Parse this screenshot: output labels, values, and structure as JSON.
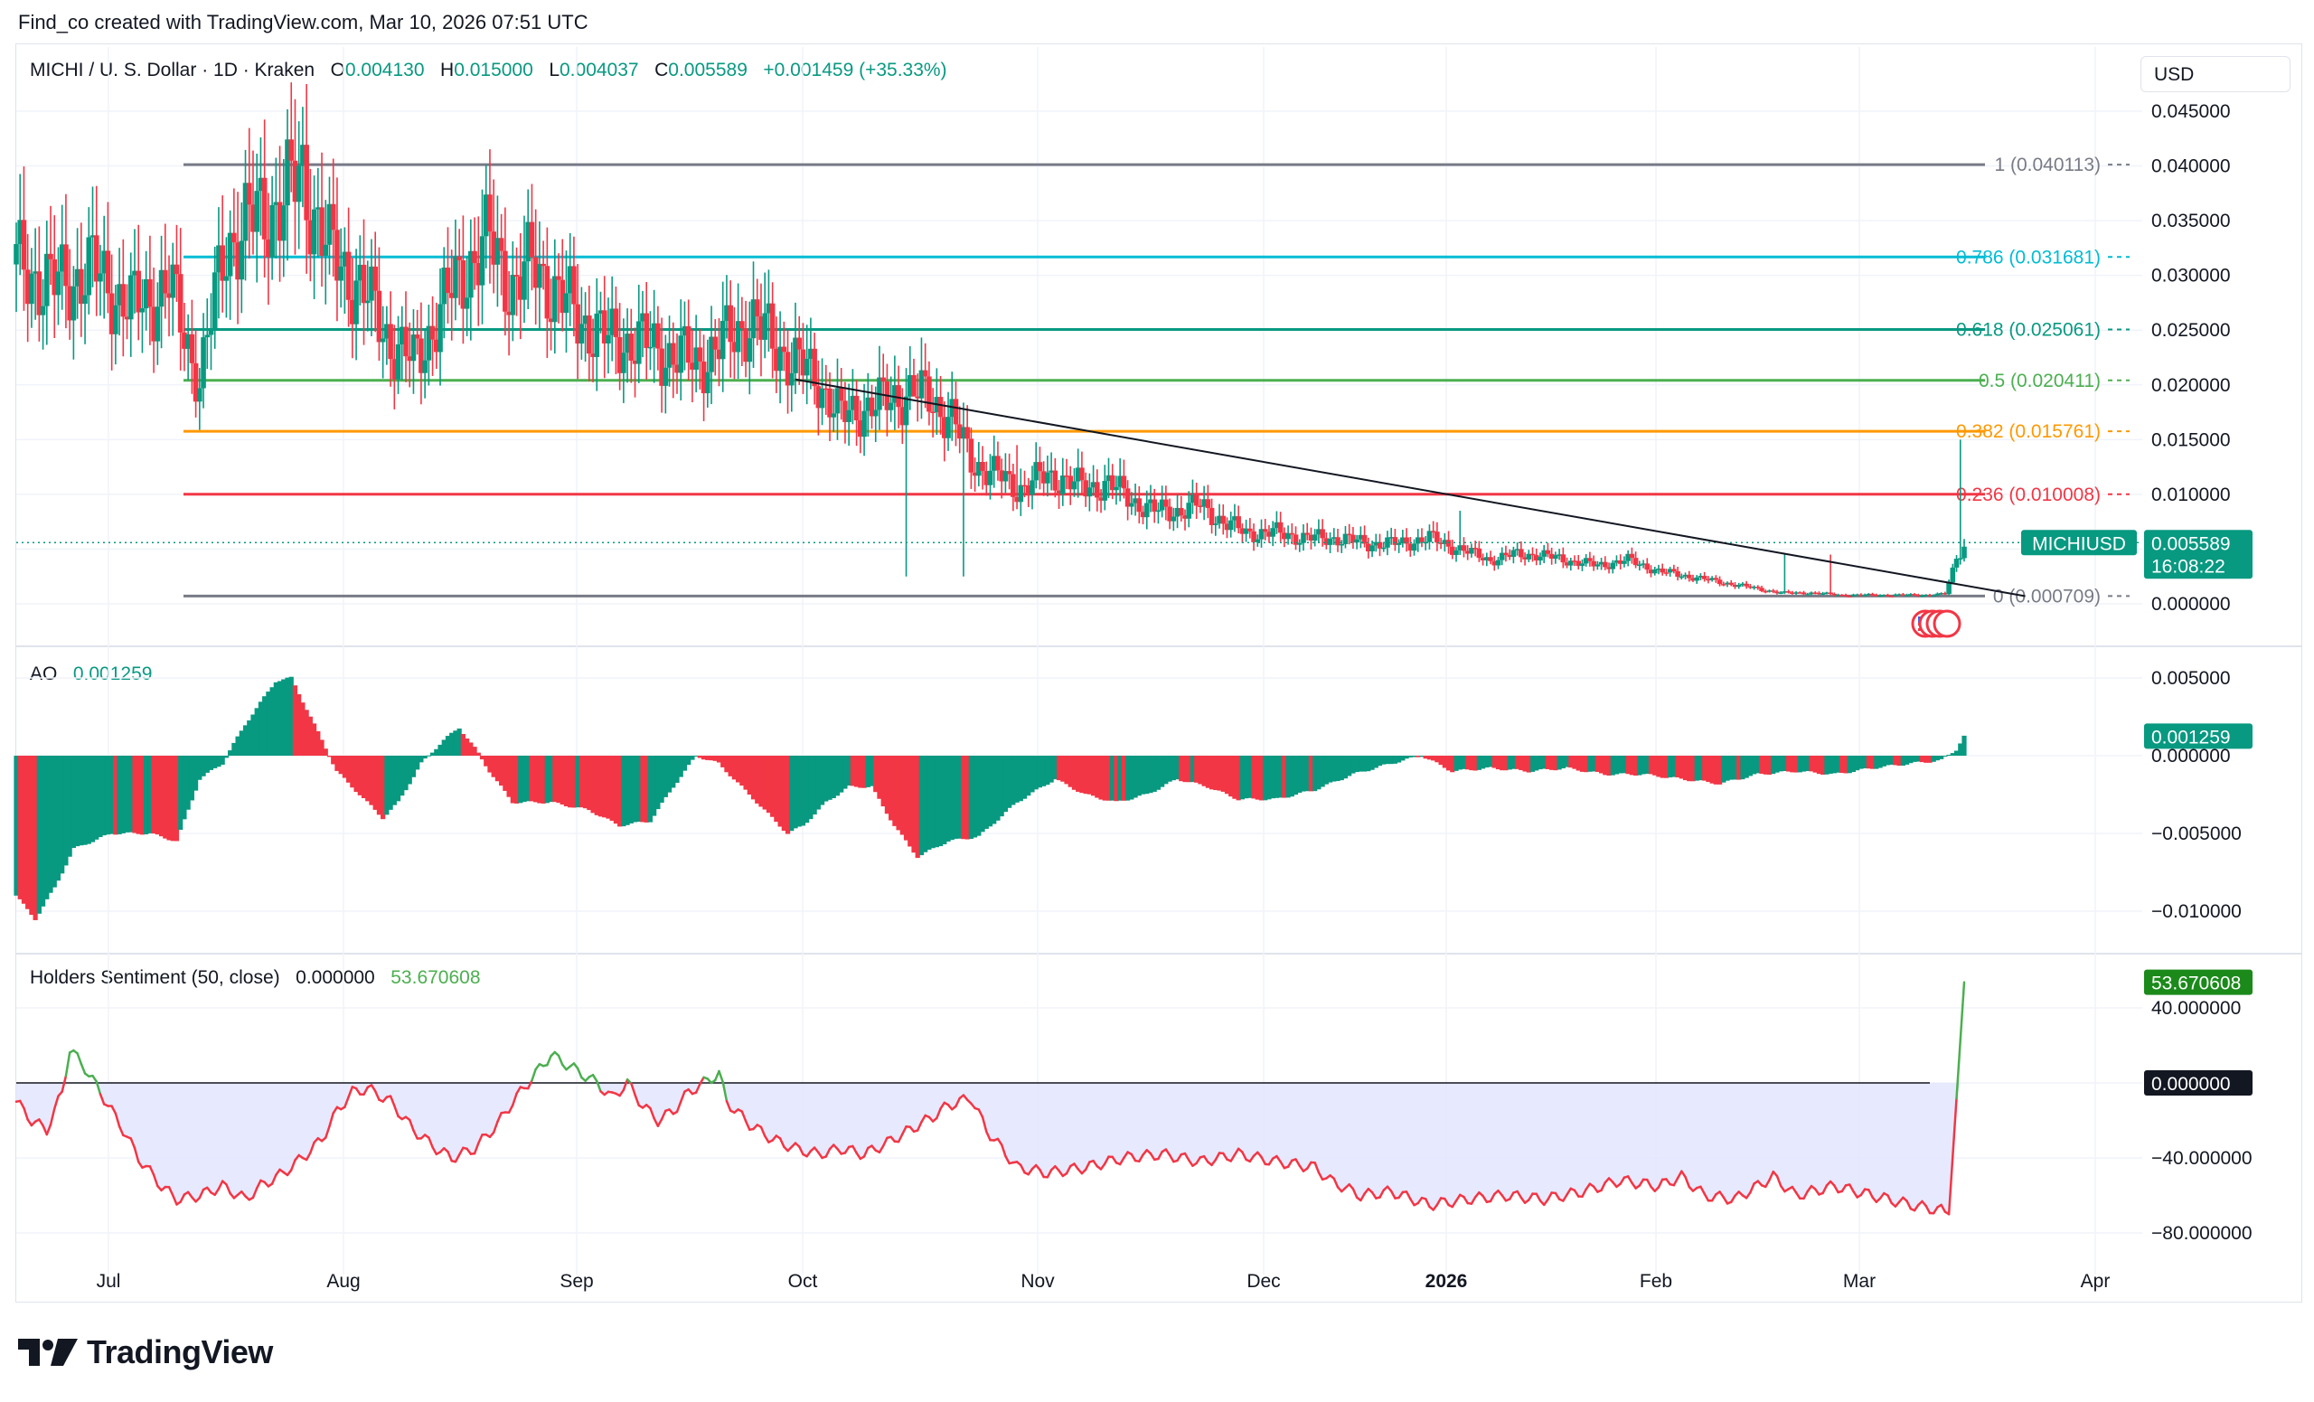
{
  "credit": "Find_co created with TradingView.com, Mar 10, 2026 07:51 UTC",
  "brand": "TradingView",
  "currency": "USD",
  "legend": {
    "symbol": "MICHI / U. S. Dollar · 1D · Kraken",
    "o_label": "O",
    "o": "0.004130",
    "h_label": "H",
    "h": "0.015000",
    "l_label": "L",
    "l": "0.004037",
    "c_label": "C",
    "c": "0.005589",
    "change": "+0.001459 (+35.33%)"
  },
  "ao_legend": {
    "name": "AO",
    "value": "0.001259"
  },
  "hs_legend": {
    "name": "Holders Sentiment (50, close)",
    "v1": "0.000000",
    "v2": "53.670608"
  },
  "colors": {
    "up": "#089981",
    "down": "#f23645",
    "hs_line": "#f23645",
    "hs_fill": "#e1e3ff",
    "trend": "#131722"
  },
  "chart_data": [
    {
      "type": "candlestick",
      "title": "MICHI / U. S. Dollar · 1D · Kraken",
      "ylim": [
        -0.002,
        0.045
      ],
      "y_ticks": [
        "0.045000",
        "0.040000",
        "0.035000",
        "0.030000",
        "0.025000",
        "0.020000",
        "0.015000",
        "0.010000",
        "0.005000",
        "0.000000"
      ],
      "y_tick_values": [
        0.045,
        0.04,
        0.035,
        0.03,
        0.025,
        0.02,
        0.015,
        0.01,
        0.005,
        0.0
      ],
      "x_ticks": [
        "Jul",
        "Aug",
        "Sep",
        "Oct",
        "Nov",
        "Dec",
        "2026",
        "Feb",
        "Mar",
        "Apr"
      ],
      "last_price_label": "MICHIUSD",
      "last_price": "0.005589",
      "countdown": "16:08:22",
      "close_path": [
        [
          0,
          0.031
        ],
        [
          10,
          0.029
        ],
        [
          20,
          0.0305
        ],
        [
          30,
          0.027
        ],
        [
          40,
          0.029
        ],
        [
          48,
          0.0205
        ],
        [
          55,
          0.033
        ],
        [
          62,
          0.035
        ],
        [
          70,
          0.037
        ],
        [
          75,
          0.039
        ],
        [
          82,
          0.032
        ],
        [
          90,
          0.029
        ],
        [
          98,
          0.024
        ],
        [
          104,
          0.022
        ],
        [
          110,
          0.026
        ],
        [
          118,
          0.031
        ],
        [
          124,
          0.033
        ],
        [
          130,
          0.029
        ],
        [
          136,
          0.031
        ],
        [
          142,
          0.028
        ],
        [
          148,
          0.026
        ],
        [
          155,
          0.024
        ],
        [
          162,
          0.024
        ],
        [
          170,
          0.023
        ],
        [
          178,
          0.022
        ],
        [
          186,
          0.024
        ],
        [
          192,
          0.026
        ],
        [
          198,
          0.024
        ],
        [
          204,
          0.022
        ],
        [
          210,
          0.0205
        ],
        [
          216,
          0.017
        ],
        [
          222,
          0.018
        ],
        [
          228,
          0.0185
        ],
        [
          234,
          0.0195
        ],
        [
          240,
          0.0185
        ],
        [
          245,
          0.017
        ],
        [
          250,
          0.013
        ],
        [
          256,
          0.012
        ],
        [
          262,
          0.0105
        ],
        [
          268,
          0.0115
        ],
        [
          274,
          0.0115
        ],
        [
          280,
          0.0105
        ],
        [
          286,
          0.011
        ],
        [
          292,
          0.0095
        ],
        [
          298,
          0.0085
        ],
        [
          304,
          0.0085
        ],
        [
          310,
          0.009
        ],
        [
          316,
          0.0075
        ],
        [
          322,
          0.0065
        ],
        [
          330,
          0.0065
        ],
        [
          338,
          0.006
        ],
        [
          346,
          0.006
        ],
        [
          354,
          0.0055
        ],
        [
          362,
          0.0055
        ],
        [
          370,
          0.006
        ],
        [
          378,
          0.005
        ],
        [
          386,
          0.004
        ],
        [
          392,
          0.0045
        ],
        [
          398,
          0.0045
        ],
        [
          406,
          0.004
        ],
        [
          414,
          0.0035
        ],
        [
          422,
          0.004
        ],
        [
          430,
          0.003
        ],
        [
          438,
          0.0025
        ],
        [
          446,
          0.002
        ],
        [
          454,
          0.0015
        ],
        [
          462,
          0.001
        ],
        [
          470,
          0.001
        ],
        [
          478,
          0.0008
        ],
        [
          486,
          0.0008
        ],
        [
          494,
          0.0008
        ],
        [
          500,
          0.0008
        ],
        [
          505,
          0.0009
        ],
        [
          508,
          0.0041
        ],
        [
          510,
          0.0056
        ]
      ],
      "wick_spikes": [
        [
          233,
          0.0025
        ],
        [
          235,
          0.0205
        ],
        [
          248,
          0.0025
        ],
        [
          262,
          0.0145
        ],
        [
          378,
          0.0085
        ],
        [
          463,
          0.0045
        ],
        [
          475,
          0.0045
        ],
        [
          509,
          0.015
        ]
      ],
      "fib_levels": [
        {
          "ratio": "1",
          "price": 0.040113,
          "label": "1 (0.040113)",
          "color": "#787b86"
        },
        {
          "ratio": "0.786",
          "price": 0.031681,
          "label": "0.786 (0.031681)",
          "color": "#00bcd4"
        },
        {
          "ratio": "0.618",
          "price": 0.025061,
          "label": "0.618 (0.025061)",
          "color": "#089981"
        },
        {
          "ratio": "0.5",
          "price": 0.020411,
          "label": "0.5 (0.020411)",
          "color": "#4caf50"
        },
        {
          "ratio": "0.382",
          "price": 0.015761,
          "label": "0.382 (0.015761)",
          "color": "#ff9800"
        },
        {
          "ratio": "0.236",
          "price": 0.010008,
          "label": "0.236 (0.010008)",
          "color": "#f23645"
        },
        {
          "ratio": "0",
          "price": 0.000709,
          "label": "0 (0.000709)",
          "color": "#787b86"
        }
      ],
      "fib_x_range": [
        45,
        525
      ],
      "trendline": [
        [
          204,
          0.0205
        ],
        [
          526,
          0.0007
        ]
      ]
    },
    {
      "type": "bar",
      "title": "AO",
      "ylim": [
        -0.0112,
        0.0058
      ],
      "y_ticks": [
        "0.005000",
        "0.000000",
        "−0.005000",
        "−0.010000"
      ],
      "y_tick_values": [
        0.005,
        0.0,
        -0.005,
        -0.01
      ],
      "last_value": "0.001259",
      "value_path": [
        [
          0,
          -0.009
        ],
        [
          5,
          -0.0105
        ],
        [
          10,
          -0.0085
        ],
        [
          15,
          -0.006
        ],
        [
          25,
          -0.005
        ],
        [
          35,
          -0.005
        ],
        [
          42,
          -0.0055
        ],
        [
          48,
          -0.0015
        ],
        [
          54,
          -0.0005
        ],
        [
          60,
          0.002
        ],
        [
          68,
          0.0048
        ],
        [
          72,
          0.005
        ],
        [
          78,
          0.002
        ],
        [
          84,
          -0.001
        ],
        [
          92,
          -0.003
        ],
        [
          96,
          -0.004
        ],
        [
          100,
          -0.003
        ],
        [
          106,
          -0.0005
        ],
        [
          112,
          0.001
        ],
        [
          116,
          0.0018
        ],
        [
          120,
          0.0005
        ],
        [
          124,
          -0.001
        ],
        [
          130,
          -0.003
        ],
        [
          140,
          -0.003
        ],
        [
          150,
          -0.0035
        ],
        [
          158,
          -0.0045
        ],
        [
          166,
          -0.0042
        ],
        [
          172,
          -0.002
        ],
        [
          178,
          0.0
        ],
        [
          184,
          -0.0005
        ],
        [
          190,
          -0.002
        ],
        [
          196,
          -0.0035
        ],
        [
          202,
          -0.005
        ],
        [
          206,
          -0.0045
        ],
        [
          212,
          -0.003
        ],
        [
          218,
          -0.002
        ],
        [
          224,
          -0.002
        ],
        [
          230,
          -0.0045
        ],
        [
          236,
          -0.0065
        ],
        [
          244,
          -0.0055
        ],
        [
          252,
          -0.0052
        ],
        [
          262,
          -0.003
        ],
        [
          272,
          -0.0015
        ],
        [
          280,
          -0.0025
        ],
        [
          288,
          -0.003
        ],
        [
          296,
          -0.0025
        ],
        [
          304,
          -0.0015
        ],
        [
          312,
          -0.002
        ],
        [
          320,
          -0.0028
        ],
        [
          330,
          -0.0028
        ],
        [
          340,
          -0.0022
        ],
        [
          350,
          -0.0012
        ],
        [
          360,
          -0.0005
        ],
        [
          368,
          0.0
        ],
        [
          376,
          -0.001
        ],
        [
          386,
          -0.0008
        ],
        [
          396,
          -0.001
        ],
        [
          406,
          -0.0008
        ],
        [
          416,
          -0.0012
        ],
        [
          426,
          -0.0012
        ],
        [
          436,
          -0.0015
        ],
        [
          446,
          -0.0018
        ],
        [
          456,
          -0.0012
        ],
        [
          466,
          -0.001
        ],
        [
          476,
          -0.0012
        ],
        [
          486,
          -0.0008
        ],
        [
          496,
          -0.0005
        ],
        [
          504,
          -0.0003
        ],
        [
          508,
          0.0004
        ],
        [
          510,
          0.001259
        ]
      ]
    },
    {
      "type": "area",
      "title": "Holders Sentiment (50, close)",
      "ylim": [
        -98,
        66
      ],
      "y_ticks": [
        "40.000000",
        "0.000000",
        "−40.000000",
        "−80.000000"
      ],
      "y_tick_values": [
        40,
        0,
        -40,
        -80
      ],
      "last_value": "53.670608",
      "zero_label": "0.000000",
      "value_path": [
        [
          0,
          -10
        ],
        [
          4,
          -20
        ],
        [
          8,
          -25
        ],
        [
          12,
          -5
        ],
        [
          14,
          18
        ],
        [
          18,
          8
        ],
        [
          22,
          -5
        ],
        [
          28,
          -25
        ],
        [
          32,
          -40
        ],
        [
          38,
          -55
        ],
        [
          42,
          -62
        ],
        [
          48,
          -60
        ],
        [
          54,
          -55
        ],
        [
          60,
          -62
        ],
        [
          64,
          -55
        ],
        [
          70,
          -48
        ],
        [
          76,
          -38
        ],
        [
          80,
          -30
        ],
        [
          84,
          -15
        ],
        [
          88,
          -5
        ],
        [
          92,
          -3
        ],
        [
          98,
          -10
        ],
        [
          104,
          -25
        ],
        [
          110,
          -35
        ],
        [
          114,
          -40
        ],
        [
          120,
          -35
        ],
        [
          126,
          -22
        ],
        [
          130,
          -10
        ],
        [
          136,
          5
        ],
        [
          140,
          15
        ],
        [
          144,
          10
        ],
        [
          148,
          5
        ],
        [
          152,
          0
        ],
        [
          156,
          -8
        ],
        [
          160,
          0
        ],
        [
          164,
          -12
        ],
        [
          168,
          -20
        ],
        [
          172,
          -15
        ],
        [
          176,
          -5
        ],
        [
          180,
          0
        ],
        [
          184,
          5
        ],
        [
          186,
          -10
        ],
        [
          192,
          -22
        ],
        [
          198,
          -30
        ],
        [
          204,
          -35
        ],
        [
          210,
          -38
        ],
        [
          216,
          -35
        ],
        [
          222,
          -38
        ],
        [
          228,
          -32
        ],
        [
          234,
          -25
        ],
        [
          240,
          -18
        ],
        [
          244,
          -12
        ],
        [
          250,
          -8
        ],
        [
          254,
          -25
        ],
        [
          262,
          -45
        ],
        [
          270,
          -48
        ],
        [
          280,
          -45
        ],
        [
          290,
          -40
        ],
        [
          300,
          -38
        ],
        [
          310,
          -42
        ],
        [
          320,
          -38
        ],
        [
          330,
          -42
        ],
        [
          340,
          -45
        ],
        [
          344,
          -52
        ],
        [
          352,
          -60
        ],
        [
          360,
          -58
        ],
        [
          370,
          -65
        ],
        [
          380,
          -62
        ],
        [
          390,
          -60
        ],
        [
          400,
          -62
        ],
        [
          410,
          -58
        ],
        [
          420,
          -52
        ],
        [
          430,
          -55
        ],
        [
          436,
          -50
        ],
        [
          442,
          -60
        ],
        [
          450,
          -62
        ],
        [
          460,
          -50
        ],
        [
          466,
          -60
        ],
        [
          476,
          -55
        ],
        [
          486,
          -60
        ],
        [
          496,
          -65
        ],
        [
          504,
          -68
        ],
        [
          506,
          -70
        ],
        [
          510,
          53.67
        ]
      ]
    }
  ]
}
